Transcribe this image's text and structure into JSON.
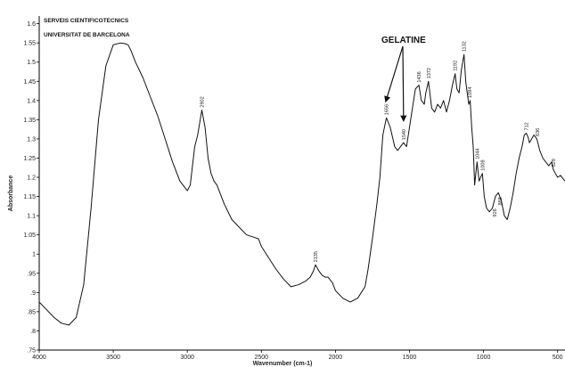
{
  "chart_data": {
    "type": "line",
    "header": [
      "SERVEIS CIENTIFICOTECNICS",
      "UNIVERSITAT DE BARCELONA"
    ],
    "xlabel": "Wavenumber (cm-1)",
    "ylabel": "Absorbance",
    "xlim": [
      4000,
      450
    ],
    "ylim": [
      0.75,
      1.62
    ],
    "x_ticks": [
      4000,
      3500,
      3000,
      2500,
      2000,
      1500,
      1000,
      500
    ],
    "x_tick_labels": [
      "4000",
      "3500",
      "3000",
      "2500",
      "2000",
      "1500",
      "1000",
      "500"
    ],
    "y_ticks": [
      0.75,
      0.8,
      0.85,
      0.9,
      0.95,
      1.0,
      1.05,
      1.1,
      1.15,
      1.2,
      1.25,
      1.3,
      1.35,
      1.4,
      1.45,
      1.5,
      1.55,
      1.6
    ],
    "y_tick_labels": [
      ".75",
      ".8",
      ".85",
      ".9",
      ".95",
      "1",
      "1.05",
      "1.1",
      "1.15",
      "1.2",
      "1.25",
      "1.3",
      "1.35",
      "1.4",
      "1.45",
      "1.5",
      "1.55",
      "1.6"
    ],
    "grid": false,
    "series": [
      {
        "x": [
          4000,
          3950,
          3900,
          3850,
          3800,
          3750,
          3700,
          3650,
          3600,
          3550,
          3500,
          3450,
          3420,
          3400,
          3380,
          3350,
          3300,
          3250,
          3200,
          3150,
          3100,
          3050,
          3000,
          2980,
          2950,
          2930,
          2902,
          2880,
          2860,
          2840,
          2820,
          2800,
          2750,
          2700,
          2650,
          2600,
          2560,
          2520,
          2500,
          2450,
          2400,
          2350,
          2300,
          2250,
          2200,
          2170,
          2150,
          2135,
          2110,
          2090,
          2070,
          2050,
          2020,
          2000,
          1950,
          1900,
          1850,
          1800,
          1780,
          1750,
          1720,
          1700,
          1680,
          1656,
          1630,
          1600,
          1580,
          1560,
          1540,
          1520,
          1500,
          1480,
          1460,
          1436,
          1420,
          1400,
          1390,
          1372,
          1350,
          1330,
          1310,
          1290,
          1270,
          1250,
          1230,
          1210,
          1192,
          1180,
          1165,
          1150,
          1132,
          1120,
          1110,
          1100,
          1090,
          1080,
          1070,
          1060,
          1044,
          1030,
          1020,
          1008,
          995,
          980,
          960,
          940,
          920,
          900,
          880,
          860,
          840,
          820,
          800,
          780,
          760,
          740,
          725,
          712,
          700,
          690,
          675,
          660,
          640,
          620,
          600,
          580,
          560,
          540,
          529,
          515,
          500,
          480,
          460,
          450
        ],
        "y": [
          0.875,
          0.855,
          0.835,
          0.82,
          0.815,
          0.835,
          0.92,
          1.12,
          1.35,
          1.49,
          1.545,
          1.55,
          1.548,
          1.545,
          1.53,
          1.5,
          1.46,
          1.41,
          1.36,
          1.3,
          1.24,
          1.19,
          1.165,
          1.18,
          1.28,
          1.31,
          1.375,
          1.33,
          1.25,
          1.21,
          1.19,
          1.18,
          1.13,
          1.09,
          1.07,
          1.05,
          1.045,
          1.04,
          1.02,
          0.99,
          0.96,
          0.935,
          0.915,
          0.92,
          0.93,
          0.94,
          0.955,
          0.972,
          0.955,
          0.945,
          0.94,
          0.94,
          0.925,
          0.905,
          0.885,
          0.875,
          0.885,
          0.915,
          0.96,
          1.04,
          1.13,
          1.2,
          1.31,
          1.355,
          1.33,
          1.28,
          1.27,
          1.28,
          1.29,
          1.28,
          1.33,
          1.38,
          1.43,
          1.44,
          1.4,
          1.39,
          1.42,
          1.45,
          1.38,
          1.37,
          1.39,
          1.38,
          1.4,
          1.37,
          1.4,
          1.44,
          1.47,
          1.43,
          1.42,
          1.48,
          1.52,
          1.45,
          1.42,
          1.39,
          1.4,
          1.33,
          1.28,
          1.18,
          1.24,
          1.19,
          1.2,
          1.21,
          1.15,
          1.12,
          1.11,
          1.12,
          1.15,
          1.16,
          1.14,
          1.1,
          1.09,
          1.12,
          1.16,
          1.21,
          1.25,
          1.28,
          1.31,
          1.315,
          1.305,
          1.29,
          1.3,
          1.31,
          1.3,
          1.27,
          1.25,
          1.24,
          1.23,
          1.24,
          1.22,
          1.21,
          1.2,
          1.205,
          1.195,
          1.19
        ]
      }
    ],
    "peak_labels": [
      {
        "x": 2902,
        "y": 1.375,
        "text": "2902"
      },
      {
        "x": 2135,
        "y": 0.972,
        "text": "2135"
      },
      {
        "x": 1656,
        "y": 1.355,
        "text": "1656"
      },
      {
        "x": 1540,
        "y": 1.29,
        "text": "1540"
      },
      {
        "x": 1436,
        "y": 1.44,
        "text": "1436"
      },
      {
        "x": 1372,
        "y": 1.45,
        "text": "1372"
      },
      {
        "x": 1192,
        "y": 1.47,
        "text": "1192"
      },
      {
        "x": 1132,
        "y": 1.52,
        "text": "1132"
      },
      {
        "x": 1094,
        "y": 1.4,
        "text": "1094"
      },
      {
        "x": 1044,
        "y": 1.24,
        "text": "1044"
      },
      {
        "x": 1008,
        "y": 1.21,
        "text": "1008"
      },
      {
        "x": 888,
        "y": 1.12,
        "text": "888"
      },
      {
        "x": 926,
        "y": 1.09,
        "text": "926"
      },
      {
        "x": 712,
        "y": 1.315,
        "text": "712"
      },
      {
        "x": 636,
        "y": 1.3,
        "text": "636"
      },
      {
        "x": 529,
        "y": 1.22,
        "text": "529"
      }
    ],
    "annotation": {
      "text": "GELATINE",
      "arrow_targets": [
        {
          "x": 1656,
          "y": 1.37
        },
        {
          "x": 1540,
          "y": 1.32
        }
      ]
    }
  }
}
